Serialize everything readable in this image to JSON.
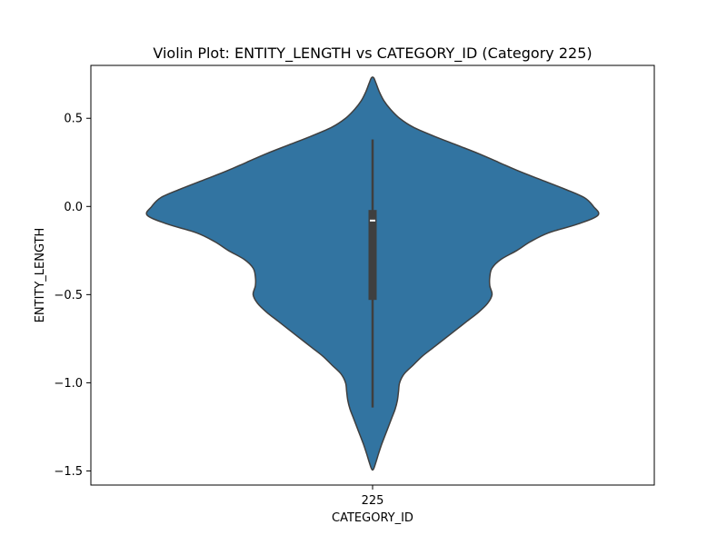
{
  "chart_data": {
    "type": "violin",
    "title": "Violin Plot: ENTITY_LENGTH vs CATEGORY_ID (Category 225)",
    "xlabel": "CATEGORY_ID",
    "ylabel": "ENTITY_LENGTH",
    "categories": [
      "225"
    ],
    "ylim": [
      -1.58,
      0.8
    ],
    "yticks": [
      0.5,
      0.0,
      -0.5,
      -1.0,
      -1.5
    ],
    "ytick_labels": [
      "0.5",
      "0.0",
      "−0.5",
      "−1.0",
      "−1.5"
    ],
    "grid": false,
    "colors": {
      "violin_fill": "#3274a1",
      "violin_edge": "#3f3f3f",
      "box": "#3f3f3f",
      "median": "#ffffff"
    },
    "violin": {
      "category": "225",
      "y_min": -1.49,
      "y_max": 0.73,
      "density_profile": [
        [
          0.73,
          0.005
        ],
        [
          0.7,
          0.015
        ],
        [
          0.65,
          0.03
        ],
        [
          0.6,
          0.05
        ],
        [
          0.55,
          0.08
        ],
        [
          0.5,
          0.12
        ],
        [
          0.45,
          0.18
        ],
        [
          0.4,
          0.27
        ],
        [
          0.35,
          0.37
        ],
        [
          0.3,
          0.47
        ],
        [
          0.25,
          0.56
        ],
        [
          0.2,
          0.65
        ],
        [
          0.15,
          0.75
        ],
        [
          0.1,
          0.85
        ],
        [
          0.05,
          0.94
        ],
        [
          0.0,
          0.98
        ],
        [
          -0.05,
          1.0
        ],
        [
          -0.1,
          0.91
        ],
        [
          -0.15,
          0.78
        ],
        [
          -0.2,
          0.7
        ],
        [
          -0.25,
          0.64
        ],
        [
          -0.3,
          0.57
        ],
        [
          -0.35,
          0.53
        ],
        [
          -0.4,
          0.52
        ],
        [
          -0.45,
          0.52
        ],
        [
          -0.5,
          0.53
        ],
        [
          -0.55,
          0.51
        ],
        [
          -0.6,
          0.47
        ],
        [
          -0.65,
          0.42
        ],
        [
          -0.7,
          0.37
        ],
        [
          -0.75,
          0.32
        ],
        [
          -0.8,
          0.27
        ],
        [
          -0.85,
          0.22
        ],
        [
          -0.9,
          0.18
        ],
        [
          -0.95,
          0.14
        ],
        [
          -1.0,
          0.12
        ],
        [
          -1.05,
          0.115
        ],
        [
          -1.1,
          0.11
        ],
        [
          -1.15,
          0.1
        ],
        [
          -1.2,
          0.085
        ],
        [
          -1.25,
          0.07
        ],
        [
          -1.3,
          0.055
        ],
        [
          -1.35,
          0.04
        ],
        [
          -1.4,
          0.027
        ],
        [
          -1.45,
          0.015
        ],
        [
          -1.49,
          0.004
        ]
      ],
      "q1": -0.53,
      "median": -0.08,
      "q3": -0.02,
      "whisker_low": -1.14,
      "whisker_high": 0.38
    }
  }
}
